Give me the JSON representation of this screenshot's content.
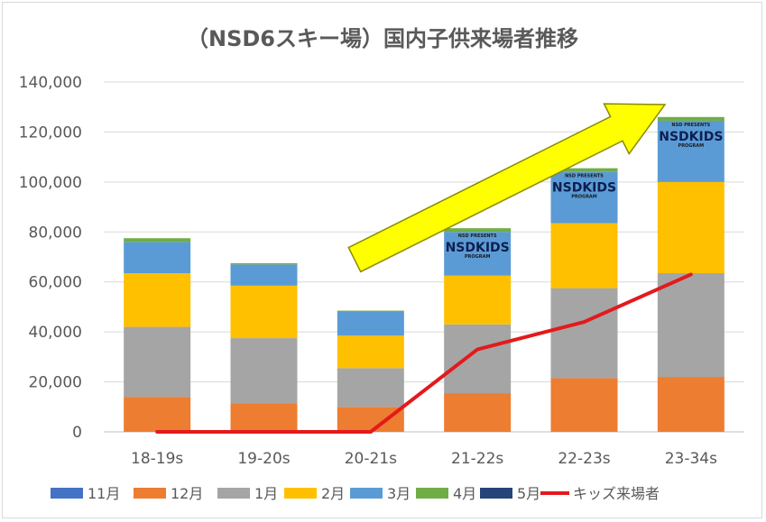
{
  "chart_data": {
    "type": "bar",
    "stacked": true,
    "title": "（NSD6スキー場）国内子供来場者推移",
    "categories": [
      "18-19s",
      "19-20s",
      "20-21s",
      "21-22s",
      "22-23s",
      "23-34s"
    ],
    "ylim": [
      0,
      140000
    ],
    "y_ticks": [
      "0",
      "20,000",
      "40,000",
      "60,000",
      "80,000",
      "100,000",
      "120,000",
      "140,000"
    ],
    "y_tick_values": [
      0,
      20000,
      40000,
      60000,
      80000,
      100000,
      120000,
      140000
    ],
    "grid": true,
    "legend_position": "bottom",
    "series": [
      {
        "name": "11月",
        "color": "#4472c4",
        "values": [
          0,
          0,
          0,
          0,
          0,
          0
        ]
      },
      {
        "name": "12月",
        "color": "#ed7d31",
        "values": [
          14000,
          11500,
          10000,
          15500,
          21500,
          22000
        ]
      },
      {
        "name": "1月",
        "color": "#a5a5a5",
        "values": [
          28000,
          26000,
          15500,
          27500,
          36000,
          41500
        ]
      },
      {
        "name": "2月",
        "color": "#ffc000",
        "values": [
          21500,
          21000,
          13000,
          19500,
          26000,
          36500
        ]
      },
      {
        "name": "3月",
        "color": "#5b9bd5",
        "values": [
          12500,
          8500,
          9500,
          17500,
          20500,
          24500
        ]
      },
      {
        "name": "4月",
        "color": "#70ad47",
        "values": [
          1500,
          500,
          500,
          1500,
          1500,
          1500
        ]
      },
      {
        "name": "5月",
        "color": "#264478",
        "values": [
          0,
          0,
          0,
          0,
          0,
          0
        ]
      }
    ],
    "line_series": {
      "name": "キッズ来場者",
      "color": "#e31a1c",
      "values": [
        0,
        0,
        0,
        33000,
        44000,
        63000
      ]
    },
    "logos": {
      "label_top": "NSD PRESENTS",
      "label_main": "NSDKIDS",
      "label_bottom": "PROGRAM",
      "categories": [
        "21-22s",
        "22-23s",
        "23-34s"
      ]
    },
    "annotation": {
      "type": "arrow",
      "color": "#ffff00",
      "description": "upward trend"
    }
  }
}
